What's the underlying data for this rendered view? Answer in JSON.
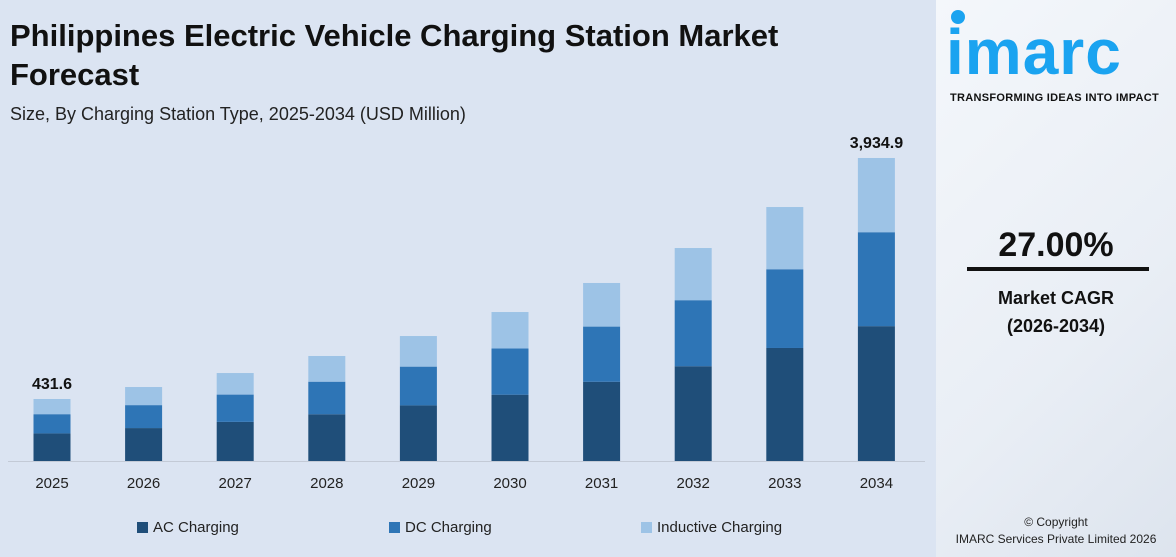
{
  "header": {
    "title": "Philippines Electric Vehicle Charging Station Market Forecast",
    "subtitle": "Size, By Charging Station Type, 2025-2034 (USD Million)"
  },
  "brand": {
    "logo": "imarc",
    "tagline": "TRANSFORMING IDEAS INTO IMPACT",
    "color": "#1aa3f0"
  },
  "stats": {
    "cagr_value": "27.00%",
    "cagr_label": "Market CAGR",
    "cagr_period": "(2026-2034)"
  },
  "footer": {
    "copyright": "© Copyright",
    "company": "IMARC Services Private Limited 2026"
  },
  "chart_data": {
    "type": "bar",
    "stacked": true,
    "categories": [
      "2025",
      "2026",
      "2027",
      "2028",
      "2029",
      "2030",
      "2031",
      "2032",
      "2033",
      "2034"
    ],
    "series": [
      {
        "name": "AC Charging",
        "color": "#1f4e79",
        "values": [
          192.1,
          269.7,
          360.0,
          470.4,
          599.4,
          754.7,
          942.5,
          1168.6,
          1433.8,
          1751.0
        ]
      },
      {
        "name": "DC Charging",
        "color": "#2e75b6",
        "values": [
          133.8,
          187.9,
          250.8,
          327.7,
          417.6,
          525.8,
          656.6,
          814.1,
          998.8,
          1219.8
        ]
      },
      {
        "name": "Inductive Charging",
        "color": "#9dc3e6",
        "values": [
          105.7,
          148.4,
          198.2,
          258.9,
          330.0,
          415.5,
          518.9,
          643.3,
          789.4,
          964.1
        ]
      }
    ],
    "data_labels": [
      {
        "category": "2025",
        "text": "431.6"
      },
      {
        "category": "2034",
        "text": "3,934.9"
      }
    ],
    "legend": "bottom",
    "grid": false,
    "xlabel": "",
    "ylabel": ""
  }
}
